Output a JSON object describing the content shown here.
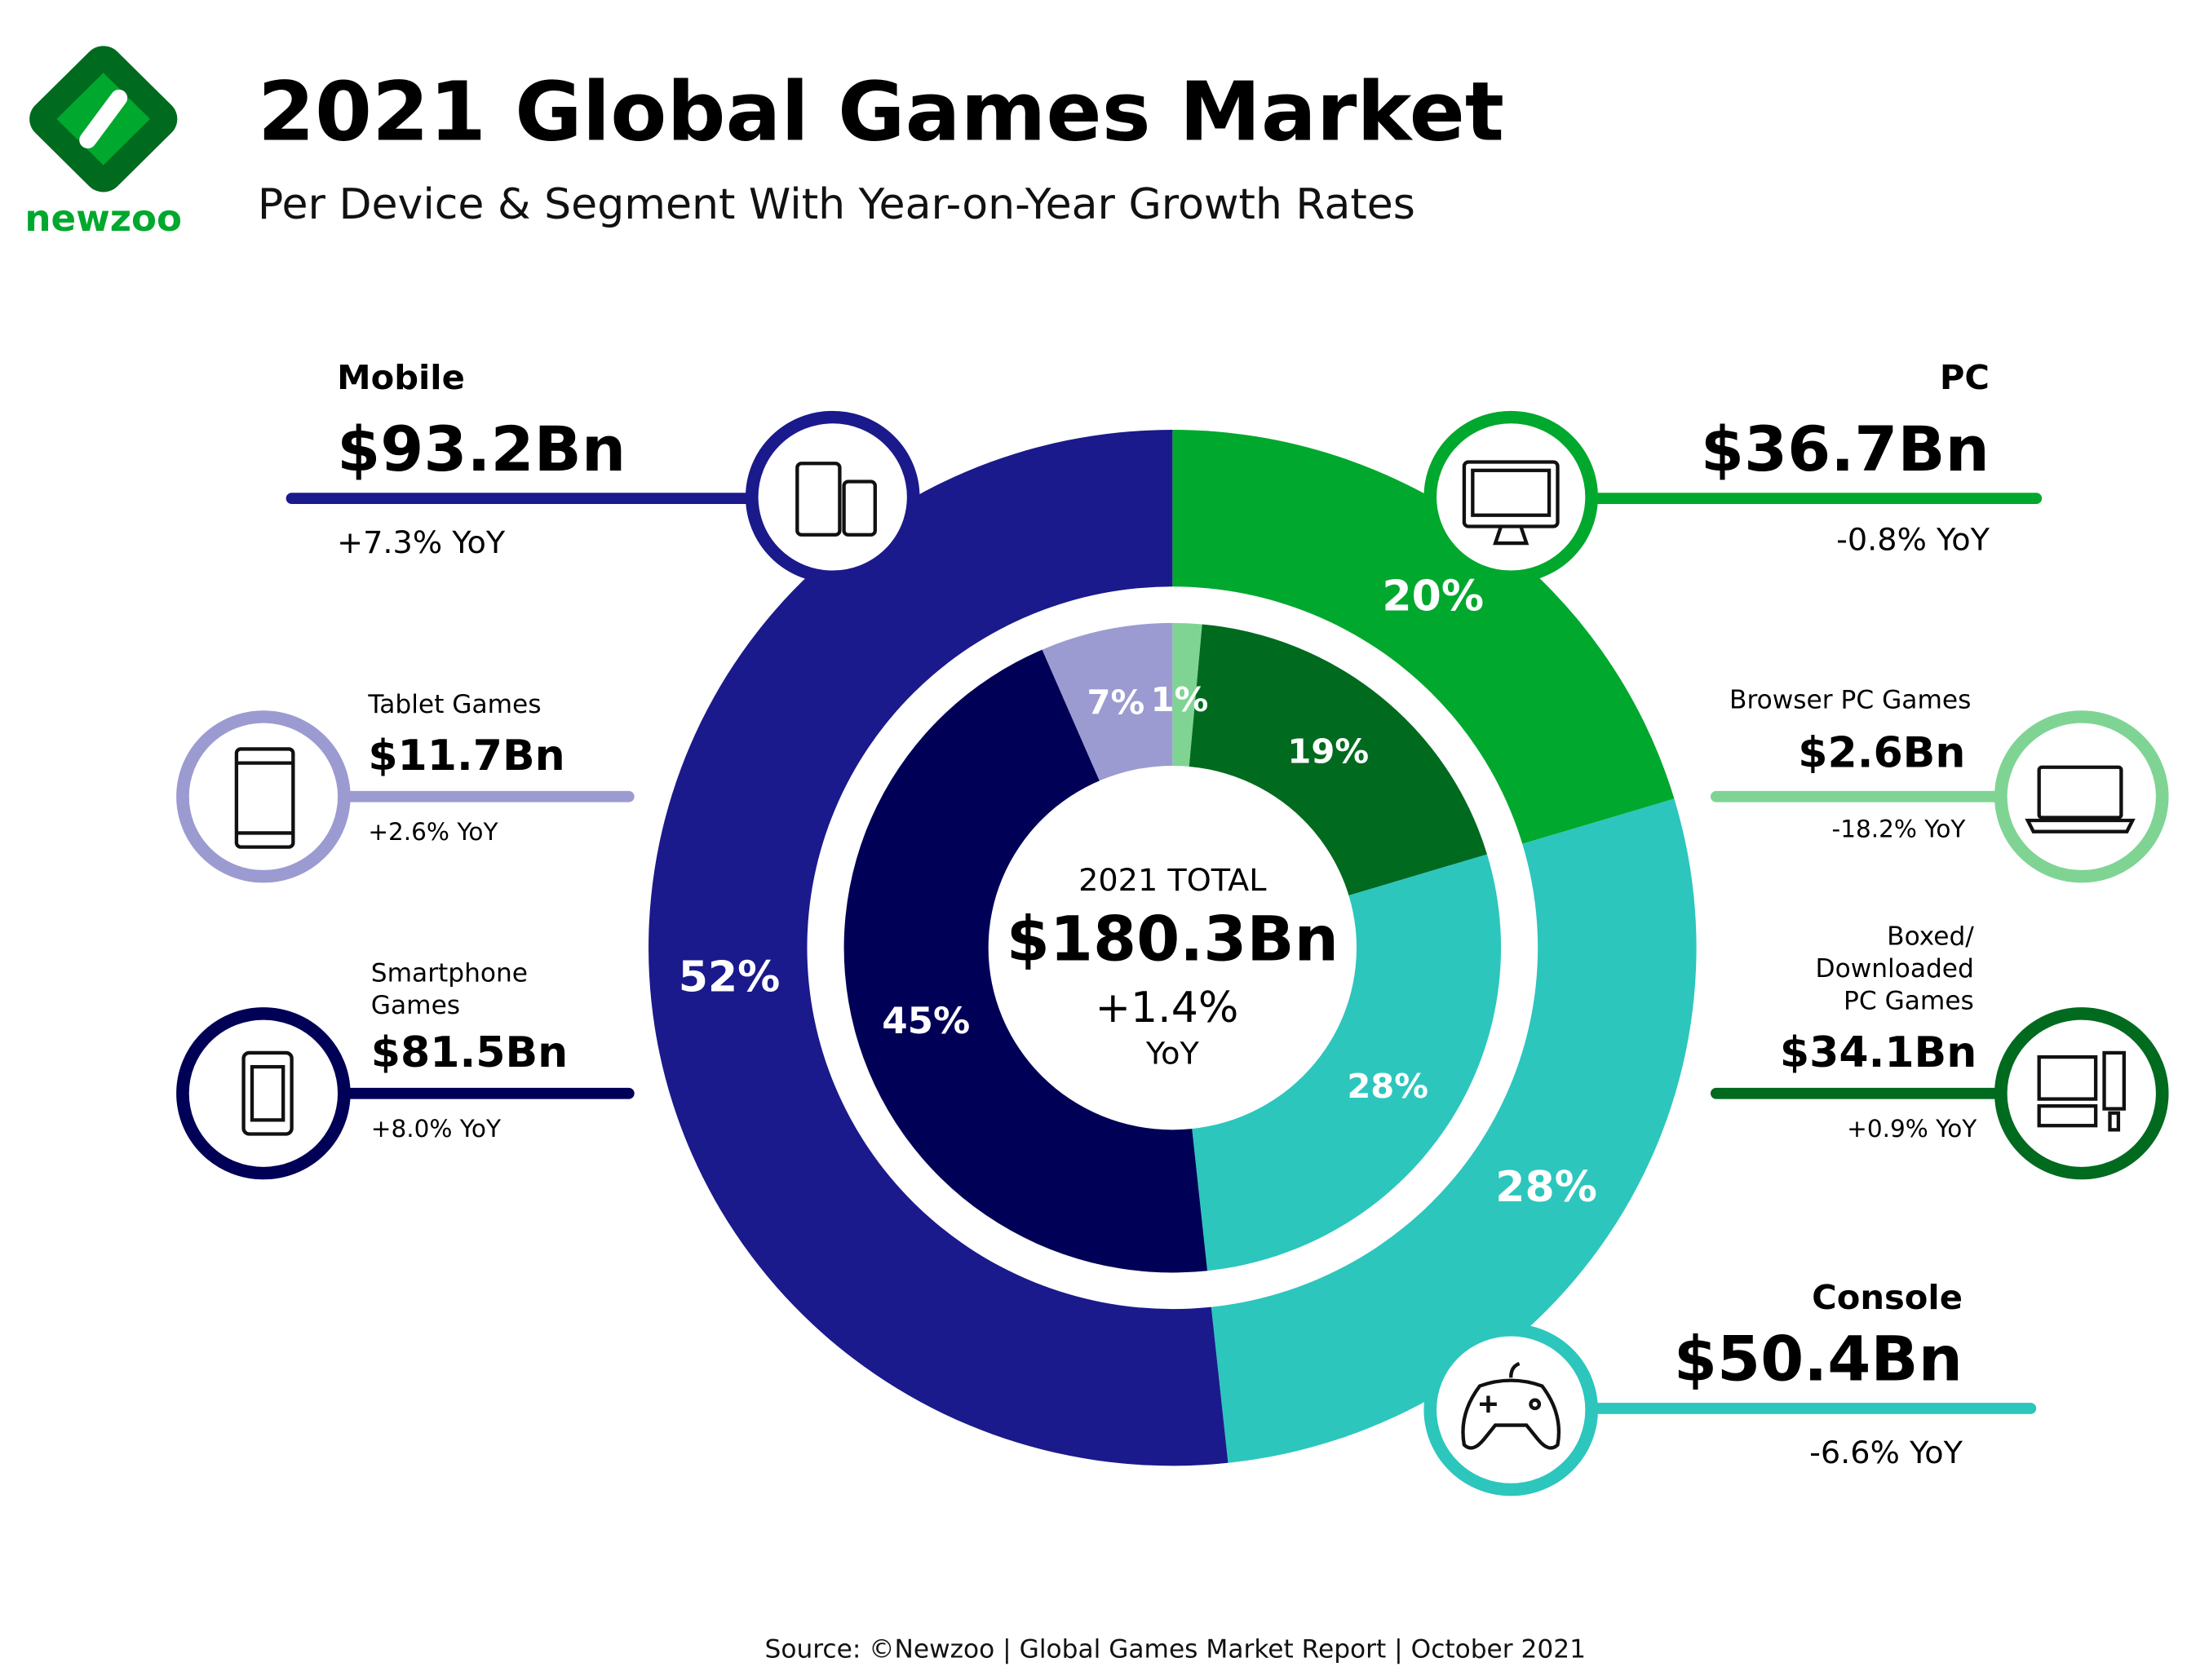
{
  "brand": {
    "name": "newzoo",
    "colors": {
      "green": "#00a82d",
      "dark_green": "#006a1f"
    }
  },
  "header": {
    "title": "2021 Global Games Market",
    "subtitle": "Per Device & Segment With Year-on-Year Growth Rates"
  },
  "footer": {
    "source": "Source: ©Newzoo | Global Games Market Report | October 2021"
  },
  "chart_data": {
    "type": "pie",
    "subtype": "nested-donut",
    "unit": "$Bn",
    "center": {
      "label": "2021 TOTAL",
      "value": "$180.3Bn",
      "growth": "+1.4%",
      "growth_unit": "YoY"
    },
    "outer_ring": [
      {
        "name": "PC",
        "value": 36.7,
        "value_label": "$36.7Bn",
        "share_label": "20%",
        "yoy": "-0.8% YoY",
        "color": "#00a82d",
        "icon": "monitor-icon"
      },
      {
        "name": "Console",
        "value": 50.4,
        "value_label": "$50.4Bn",
        "share_label": "28%",
        "yoy": "-6.6% YoY",
        "color": "#2cc6bd",
        "icon": "gamepad-icon"
      },
      {
        "name": "Mobile",
        "value": 93.2,
        "value_label": "$93.2Bn",
        "share_label": "52%",
        "yoy": "+7.3% YoY",
        "color": "#1a1a8c",
        "icon": "phone-tablet-icon"
      }
    ],
    "inner_ring": [
      {
        "name": "Browser PC Games",
        "value": 2.6,
        "value_label": "$2.6Bn",
        "share_label": "1%",
        "yoy": "-18.2% YoY",
        "color": "#7fd494",
        "icon": "laptop-icon"
      },
      {
        "name": "Boxed/ Downloaded PC Games",
        "name_lines": [
          "Boxed/",
          "Downloaded",
          "PC Games"
        ],
        "value": 34.1,
        "value_label": "$34.1Bn",
        "share_label": "19%",
        "yoy": "+0.9% YoY",
        "color": "#006a1f",
        "icon": "desktop-pc-icon"
      },
      {
        "name": "Console",
        "value": 50.4,
        "share_label": "28%",
        "color": "#2cc6bd"
      },
      {
        "name": "Smartphone Games",
        "name_lines": [
          "Smartphone",
          "Games"
        ],
        "value": 81.5,
        "value_label": "$81.5Bn",
        "share_label": "45%",
        "yoy": "+8.0% YoY",
        "color": "#000057",
        "icon": "smartphone-icon"
      },
      {
        "name": "Tablet Games",
        "value": 11.7,
        "value_label": "$11.7Bn",
        "share_label": "7%",
        "yoy": "+2.6% YoY",
        "color": "#9b9bd1",
        "icon": "tablet-icon"
      }
    ]
  }
}
